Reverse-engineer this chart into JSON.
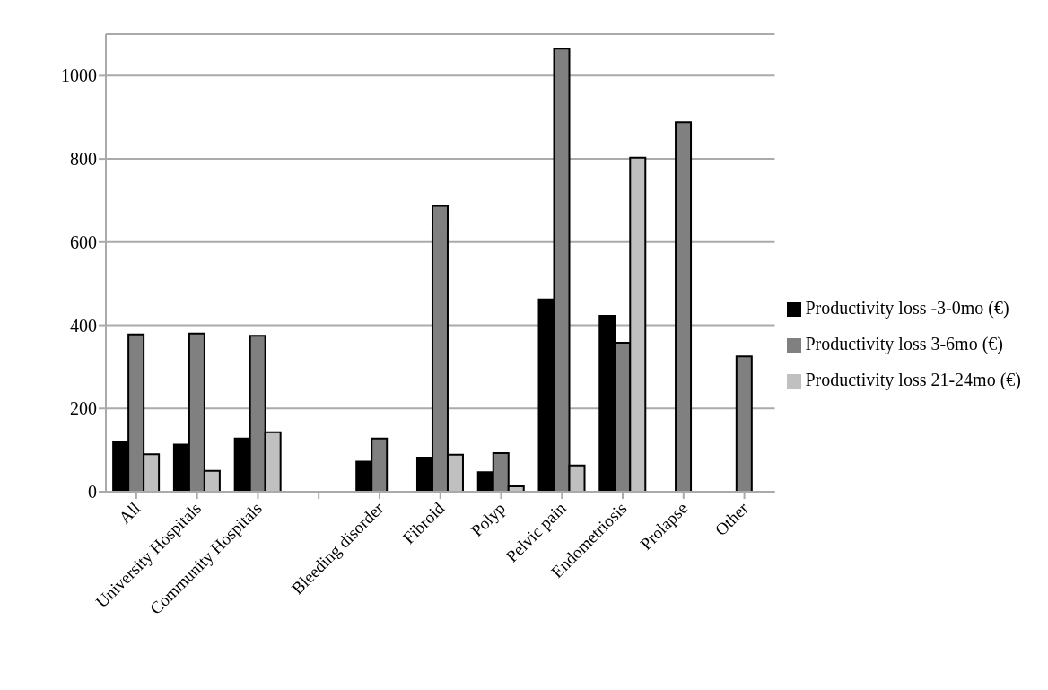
{
  "chart_data": {
    "type": "bar",
    "categories": [
      "All",
      "University Hospitals",
      "Community Hospitals",
      null,
      "Bleeding disorder",
      "Fibroid",
      "Polyp",
      "Pelvic pain",
      "Endometriosis",
      "Prolapse",
      "Other"
    ],
    "series": [
      {
        "name": "Productivity loss -3-0mo (€)",
        "color": "#000000",
        "values": [
          120,
          113,
          128,
          null,
          72,
          82,
          47,
          462,
          423,
          null,
          null
        ]
      },
      {
        "name": "Productivity loss 3-6mo (€)",
        "color": "#808080",
        "values": [
          378,
          380,
          375,
          null,
          128,
          687,
          93,
          1065,
          358,
          888,
          325
        ]
      },
      {
        "name": "Productivity loss 21-24mo (€)",
        "color": "#c0c0c0",
        "values": [
          90,
          50,
          143,
          null,
          null,
          89,
          13,
          63,
          803,
          null,
          null
        ]
      }
    ],
    "ylim": [
      0,
      1100
    ],
    "yticks": [
      0,
      200,
      400,
      600,
      800,
      1000
    ],
    "grid": "y",
    "legend": "right"
  }
}
